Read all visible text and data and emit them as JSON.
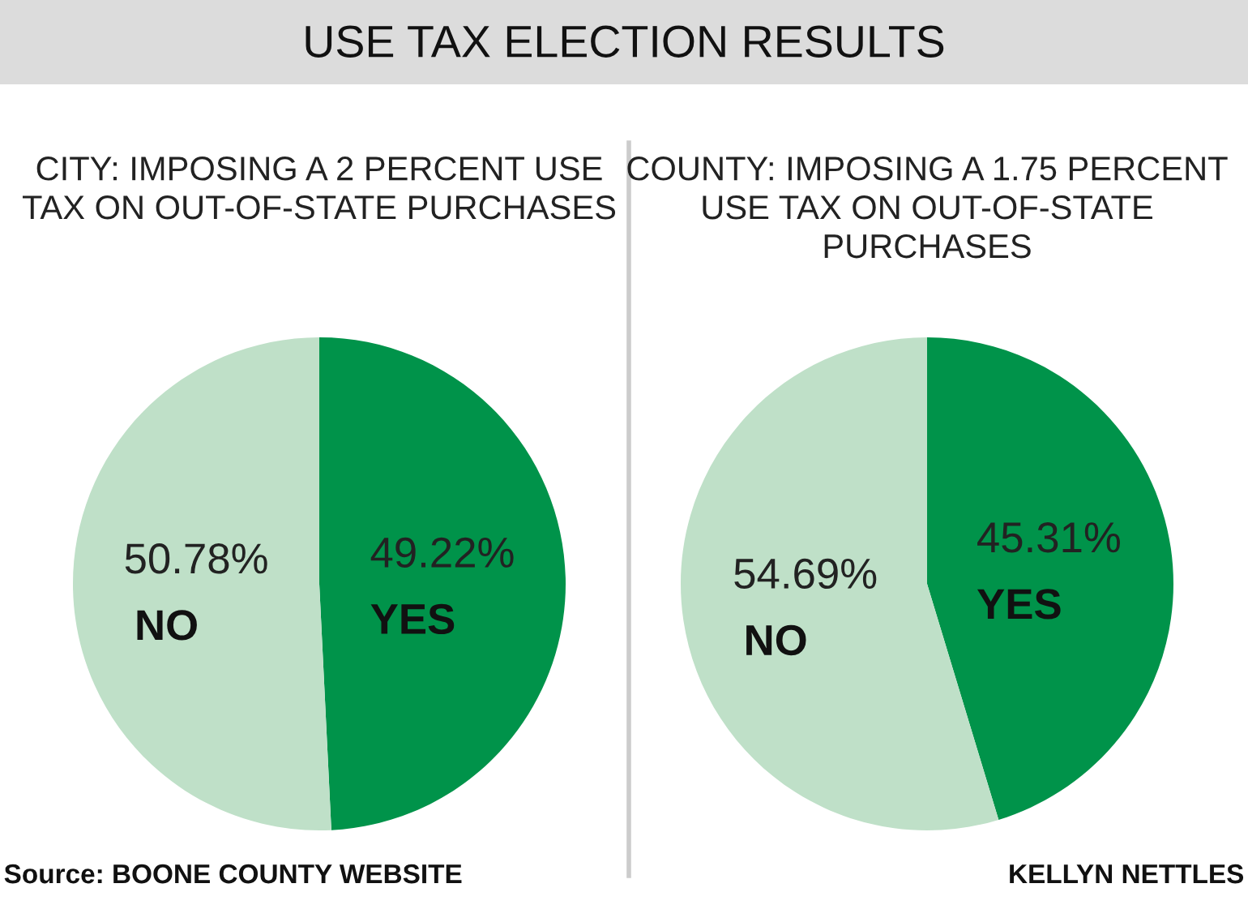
{
  "chart_data": [
    {
      "type": "pie",
      "title": "USE TAX ELECTION RESULTS",
      "subtitle": "CITY: IMPOSING A 2 PERCENT USE TAX ON OUT-OF-STATE PURCHASES",
      "categories": [
        "YES",
        "NO"
      ],
      "values": [
        49.22,
        50.78
      ],
      "colors": [
        "#00934a",
        "#bfe0c8"
      ],
      "value_labels": [
        "49.22%",
        "50.78%"
      ],
      "annotations": [
        "Source: BOONE COUNTY WEBSITE"
      ]
    },
    {
      "type": "pie",
      "subtitle": "COUNTY: IMPOSING A 1.75 PERCENT USE TAX ON OUT-OF-STATE PURCHASES",
      "categories": [
        "YES",
        "NO"
      ],
      "values": [
        45.31,
        54.69
      ],
      "colors": [
        "#00934a",
        "#bfe0c8"
      ],
      "value_labels": [
        "45.31%",
        "54.69%"
      ],
      "annotations": [
        "KELLYN NETTLES"
      ]
    }
  ]
}
